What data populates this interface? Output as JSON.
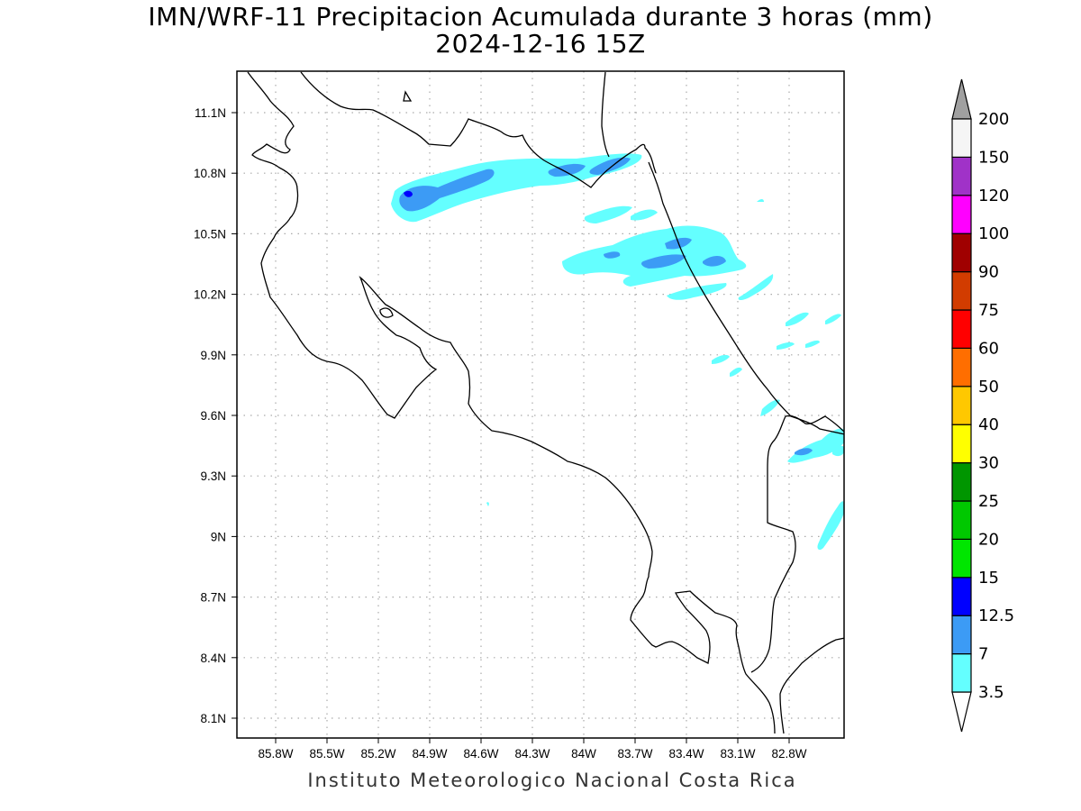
{
  "title": {
    "line1": "IMN/WRF-11 Precipitacion Acumulada durante 3 horas (mm)",
    "line2": "2024-12-16 15Z"
  },
  "footer": "Instituto Meteorologico Nacional Costa Rica",
  "map": {
    "lon_range": [
      -86.0,
      -83.0
    ],
    "lat_range": [
      8.0,
      11.3
    ],
    "gridlines": "dotted",
    "lon_ticks": [
      {
        "value": -85.8,
        "label": "85.8W"
      },
      {
        "value": -85.5,
        "label": "85.5W"
      },
      {
        "value": -85.2,
        "label": "85.2W"
      },
      {
        "value": -84.9,
        "label": "84.9W"
      },
      {
        "value": -84.6,
        "label": "84.6W"
      },
      {
        "value": -84.3,
        "label": "84.3W"
      },
      {
        "value": -84.0,
        "label": "84W"
      },
      {
        "value": -83.7,
        "label": "83.7W"
      },
      {
        "value": -83.4,
        "label": "83.4W"
      },
      {
        "value": -83.1,
        "label": "83.1W"
      },
      {
        "value": -82.8,
        "label": "82.8W"
      }
    ],
    "lat_ticks": [
      {
        "value": 11.1,
        "label": "11.1N"
      },
      {
        "value": 10.8,
        "label": "10.8N"
      },
      {
        "value": 10.5,
        "label": "10.5N"
      },
      {
        "value": 10.2,
        "label": "10.2N"
      },
      {
        "value": 9.9,
        "label": "9.9N"
      },
      {
        "value": 9.6,
        "label": "9.6N"
      },
      {
        "value": 9.3,
        "label": "9.3N"
      },
      {
        "value": 9.0,
        "label": "9N"
      },
      {
        "value": 8.7,
        "label": "8.7N"
      },
      {
        "value": 8.4,
        "label": "8.4N"
      },
      {
        "value": 8.1,
        "label": "8.1N"
      }
    ]
  },
  "colorbar": {
    "below_color": "#ffffff",
    "above_color": "#a0a0a0",
    "levels": [
      {
        "label": "3.5",
        "color": "#64ffff"
      },
      {
        "label": "7",
        "color": "#3c9bf5"
      },
      {
        "label": "12.5",
        "color": "#0000ff"
      },
      {
        "label": "15",
        "color": "#00e600"
      },
      {
        "label": "20",
        "color": "#00c800"
      },
      {
        "label": "25",
        "color": "#009600"
      },
      {
        "label": "30",
        "color": "#ffff00"
      },
      {
        "label": "40",
        "color": "#ffc800"
      },
      {
        "label": "50",
        "color": "#ff6e00"
      },
      {
        "label": "60",
        "color": "#ff0000"
      },
      {
        "label": "75",
        "color": "#d23c00"
      },
      {
        "label": "90",
        "color": "#a00000"
      },
      {
        "label": "100",
        "color": "#ff00ff"
      },
      {
        "label": "120",
        "color": "#a032c8"
      },
      {
        "label": "150",
        "color": "#f5f5f5"
      },
      {
        "label": "200",
        "color": ""
      }
    ]
  }
}
